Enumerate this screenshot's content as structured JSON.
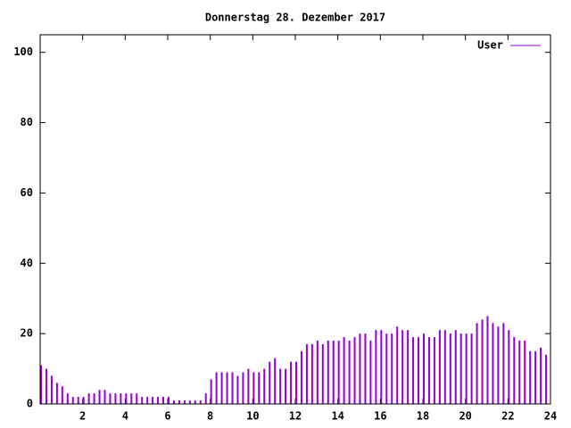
{
  "chart_data": {
    "type": "impulse",
    "title": "Donnerstag 28. Dezember 2017",
    "series": [
      {
        "name": "User",
        "color": "#9400d3",
        "x": [
          0,
          0.25,
          0.5,
          0.75,
          1,
          1.25,
          1.5,
          1.75,
          2,
          2.25,
          2.5,
          2.75,
          3,
          3.25,
          3.5,
          3.75,
          4,
          4.25,
          4.5,
          4.75,
          5,
          5.25,
          5.5,
          5.75,
          6,
          6.25,
          6.5,
          6.75,
          7,
          7.25,
          7.5,
          7.75,
          8,
          8.25,
          8.5,
          8.75,
          9,
          9.25,
          9.5,
          9.75,
          10,
          10.25,
          10.5,
          10.75,
          11,
          11.25,
          11.5,
          11.75,
          12,
          12.25,
          12.5,
          12.75,
          13,
          13.25,
          13.5,
          13.75,
          14,
          14.25,
          14.5,
          14.75,
          15,
          15.25,
          15.5,
          15.75,
          16,
          16.25,
          16.5,
          16.75,
          17,
          17.25,
          17.5,
          17.75,
          18,
          18.25,
          18.5,
          18.75,
          19,
          19.25,
          19.5,
          19.75,
          20,
          20.25,
          20.5,
          20.75,
          21,
          21.25,
          21.5,
          21.75,
          22,
          22.25,
          22.5,
          22.75,
          23,
          23.25,
          23.5,
          23.75
        ],
        "values": [
          11,
          10,
          8,
          6,
          5,
          3,
          2,
          2,
          2,
          3,
          3,
          4,
          4,
          3,
          3,
          3,
          3,
          3,
          3,
          2,
          2,
          2,
          2,
          2,
          2,
          1,
          1,
          1,
          1,
          1,
          1,
          3,
          7,
          9,
          9,
          9,
          9,
          8,
          9,
          10,
          9,
          9,
          10,
          12,
          13,
          10,
          10,
          12,
          12,
          15,
          17,
          17,
          18,
          17,
          18,
          18,
          18,
          19,
          18,
          19,
          20,
          20,
          18,
          21,
          21,
          20,
          20,
          22,
          21,
          21,
          19,
          19,
          20,
          19,
          19,
          21,
          21,
          20,
          21,
          20,
          20,
          20,
          23,
          24,
          25,
          23,
          22,
          23,
          21,
          19,
          18,
          18,
          15,
          15,
          16,
          14
        ]
      }
    ],
    "xlim": [
      0,
      24
    ],
    "xticks": [
      2,
      4,
      6,
      8,
      10,
      12,
      14,
      16,
      18,
      20,
      22,
      24
    ],
    "ylim": [
      0,
      105
    ],
    "yticks": [
      0,
      20,
      40,
      60,
      80,
      100
    ]
  }
}
